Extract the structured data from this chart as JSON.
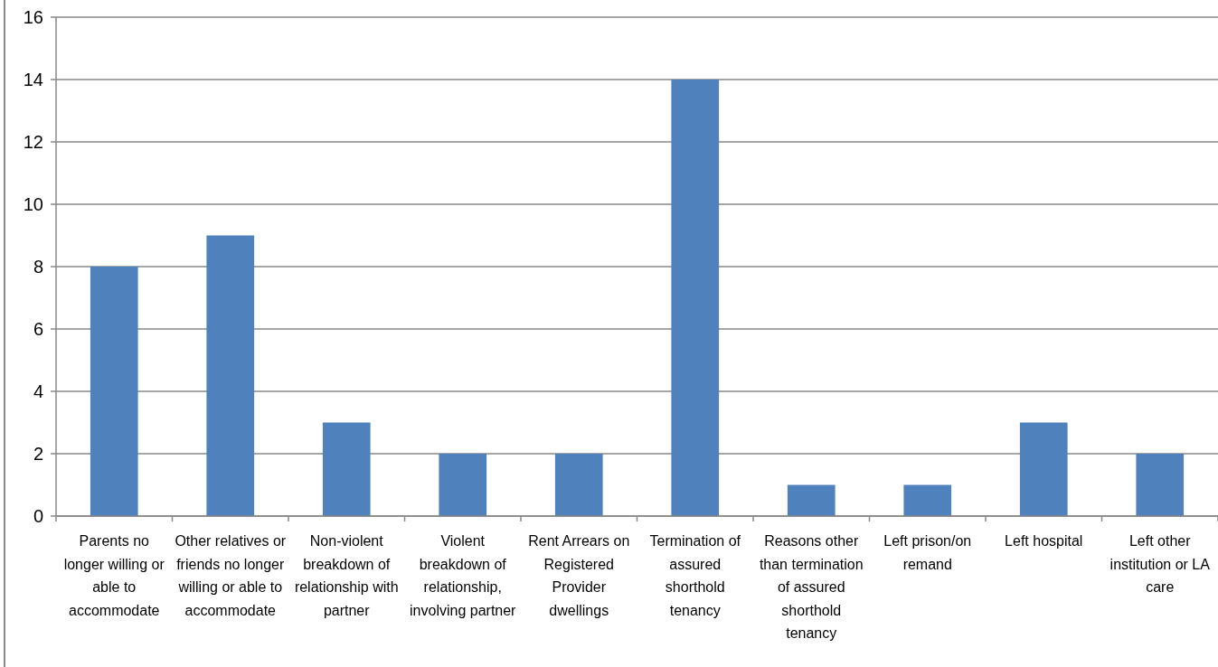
{
  "chart_data": {
    "type": "bar",
    "categories": [
      "Parents no longer willing or able to accommodate",
      "Other relatives or friends no longer willing or able to accommodate",
      "Non-violent breakdown of relationship with partner",
      "Violent breakdown of relationship, involving partner",
      "Rent Arrears on Registered Provider dwellings",
      "Termination of assured shorthold tenancy",
      "Reasons other than termination of assured shorthold tenancy",
      "Left prison/on remand",
      "Left hospital",
      "Left other institution or LA care"
    ],
    "values": [
      8,
      9,
      3,
      2,
      2,
      14,
      1,
      1,
      3,
      2
    ],
    "color": "#4f81bd",
    "ylim": [
      0,
      16
    ],
    "yticks": [
      0,
      2,
      4,
      6,
      8,
      10,
      12,
      14,
      16
    ],
    "grid": "y"
  }
}
